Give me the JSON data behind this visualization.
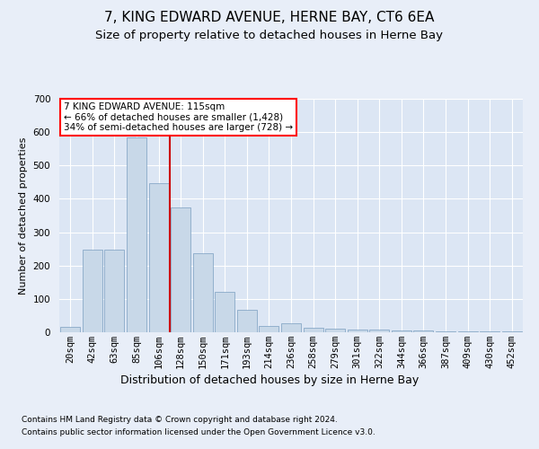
{
  "title": "7, KING EDWARD AVENUE, HERNE BAY, CT6 6EA",
  "subtitle": "Size of property relative to detached houses in Herne Bay",
  "xlabel": "Distribution of detached houses by size in Herne Bay",
  "ylabel": "Number of detached properties",
  "footnote1": "Contains HM Land Registry data © Crown copyright and database right 2024.",
  "footnote2": "Contains public sector information licensed under the Open Government Licence v3.0.",
  "annotation_line1": "7 KING EDWARD AVENUE: 115sqm",
  "annotation_line2": "← 66% of detached houses are smaller (1,428)",
  "annotation_line3": "34% of semi-detached houses are larger (728) →",
  "categories": [
    "20sqm",
    "42sqm",
    "63sqm",
    "85sqm",
    "106sqm",
    "128sqm",
    "150sqm",
    "171sqm",
    "193sqm",
    "214sqm",
    "236sqm",
    "258sqm",
    "279sqm",
    "301sqm",
    "322sqm",
    "344sqm",
    "366sqm",
    "387sqm",
    "409sqm",
    "430sqm",
    "452sqm"
  ],
  "values": [
    15,
    248,
    248,
    585,
    448,
    375,
    238,
    120,
    68,
    20,
    28,
    14,
    12,
    8,
    7,
    6,
    5,
    4,
    3,
    2,
    2
  ],
  "bar_color": "#c8d8e8",
  "bar_edge_color": "#7a9ec0",
  "red_line_index": 5,
  "red_line_color": "#cc0000",
  "background_color": "#e8eef8",
  "plot_bg_color": "#dce6f4",
  "grid_color": "#ffffff",
  "ylim": [
    0,
    700
  ],
  "yticks": [
    0,
    100,
    200,
    300,
    400,
    500,
    600,
    700
  ],
  "title_fontsize": 11,
  "subtitle_fontsize": 9.5,
  "xlabel_fontsize": 9,
  "ylabel_fontsize": 8,
  "tick_fontsize": 7.5,
  "annotation_fontsize": 7.5,
  "footnote_fontsize": 6.5
}
